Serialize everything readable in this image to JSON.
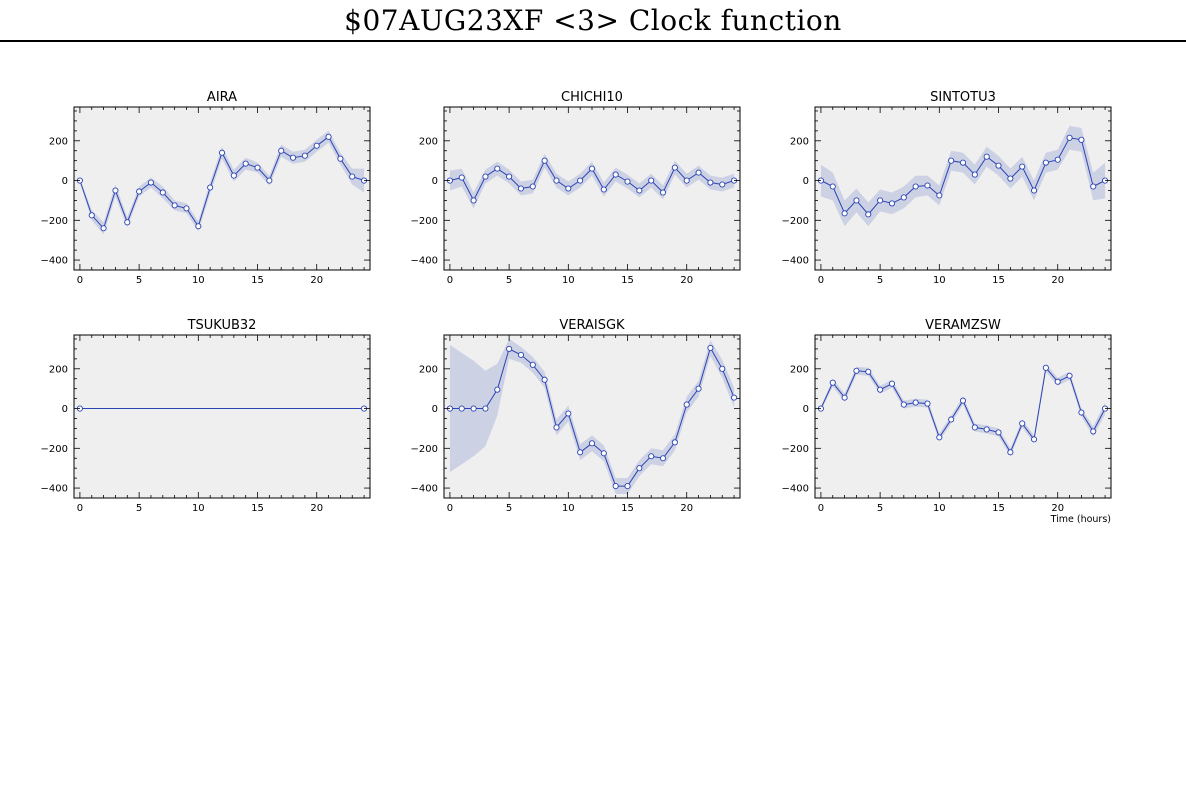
{
  "page": {
    "title": "$07AUG23XF <3>  Clock function"
  },
  "style": {
    "line_color": "#2b44b4",
    "band_color": "#cdd1e4",
    "panel_bg": "#efefef",
    "axis_color": "#000000"
  },
  "chart_data": [
    {
      "type": "line",
      "title": "AIRA",
      "xlabel": "",
      "ylabel": "",
      "xlim": [
        -0.5,
        24.5
      ],
      "ylim": [
        -450,
        370
      ],
      "xticks": [
        0,
        5,
        10,
        15,
        20
      ],
      "yticks": [
        -400,
        -200,
        0,
        200
      ],
      "x": [
        0,
        1,
        2,
        3,
        4,
        5,
        6,
        7,
        8,
        9,
        10,
        11,
        12,
        13,
        14,
        15,
        16,
        17,
        18,
        19,
        20,
        21,
        22,
        23,
        24
      ],
      "y": [
        0,
        -175,
        -240,
        -50,
        -210,
        -55,
        -10,
        -60,
        -125,
        -140,
        -230,
        -35,
        140,
        25,
        85,
        65,
        0,
        150,
        115,
        125,
        175,
        220,
        110,
        20,
        0
      ],
      "err": [
        10,
        25,
        30,
        30,
        25,
        25,
        25,
        30,
        25,
        25,
        25,
        30,
        30,
        30,
        30,
        25,
        25,
        30,
        30,
        30,
        30,
        30,
        30,
        40,
        60
      ]
    },
    {
      "type": "line",
      "title": "CHICHI10",
      "xlabel": "",
      "ylabel": "",
      "xlim": [
        -0.5,
        24.5
      ],
      "ylim": [
        -450,
        370
      ],
      "xticks": [
        0,
        5,
        10,
        15,
        20
      ],
      "yticks": [
        -400,
        -200,
        0,
        200
      ],
      "x": [
        0,
        1,
        2,
        3,
        4,
        5,
        6,
        7,
        8,
        9,
        10,
        11,
        12,
        13,
        14,
        15,
        16,
        17,
        18,
        19,
        20,
        21,
        22,
        23,
        24
      ],
      "y": [
        0,
        15,
        -100,
        20,
        60,
        20,
        -40,
        -30,
        100,
        0,
        -40,
        0,
        60,
        -45,
        30,
        -5,
        -50,
        0,
        -60,
        65,
        0,
        40,
        -10,
        -20,
        0
      ],
      "err": [
        50,
        45,
        40,
        35,
        35,
        35,
        35,
        35,
        35,
        35,
        35,
        35,
        35,
        35,
        35,
        35,
        35,
        35,
        35,
        35,
        35,
        35,
        35,
        35,
        35
      ]
    },
    {
      "type": "line",
      "title": "SINTOTU3",
      "xlabel": "",
      "ylabel": "",
      "xlim": [
        -0.5,
        24.5
      ],
      "ylim": [
        -450,
        370
      ],
      "xticks": [
        0,
        5,
        10,
        15,
        20
      ],
      "yticks": [
        -400,
        -200,
        0,
        200
      ],
      "x": [
        0,
        1,
        2,
        3,
        4,
        5,
        6,
        7,
        8,
        9,
        10,
        11,
        12,
        13,
        14,
        15,
        16,
        17,
        18,
        19,
        20,
        21,
        22,
        23,
        24
      ],
      "y": [
        0,
        -30,
        -165,
        -100,
        -170,
        -100,
        -115,
        -85,
        -30,
        -25,
        -75,
        100,
        90,
        30,
        120,
        75,
        10,
        70,
        -50,
        90,
        105,
        215,
        205,
        -30,
        0
      ],
      "err": [
        80,
        70,
        65,
        60,
        60,
        55,
        55,
        55,
        55,
        50,
        50,
        50,
        50,
        50,
        50,
        50,
        50,
        50,
        50,
        50,
        50,
        60,
        60,
        70,
        90
      ]
    },
    {
      "type": "line",
      "title": "TSUKUB32",
      "xlabel": "",
      "ylabel": "",
      "xlim": [
        -0.5,
        24.5
      ],
      "ylim": [
        -450,
        370
      ],
      "xticks": [
        0,
        5,
        10,
        15,
        20
      ],
      "yticks": [
        -400,
        -200,
        0,
        200
      ],
      "x": [
        0,
        24
      ],
      "y": [
        0,
        0
      ],
      "err": [
        0,
        0
      ]
    },
    {
      "type": "line",
      "title": "VERAISGK",
      "xlabel": "",
      "ylabel": "",
      "xlim": [
        -0.5,
        24.5
      ],
      "ylim": [
        -450,
        370
      ],
      "xticks": [
        0,
        5,
        10,
        15,
        20
      ],
      "yticks": [
        -400,
        -200,
        0,
        200
      ],
      "x": [
        0,
        1,
        2,
        3,
        4,
        5,
        6,
        7,
        8,
        9,
        10,
        11,
        12,
        13,
        14,
        15,
        16,
        17,
        18,
        19,
        20,
        21,
        22,
        23,
        24
      ],
      "y": [
        0,
        0,
        0,
        0,
        95,
        300,
        270,
        220,
        145,
        -95,
        -25,
        -220,
        -175,
        -225,
        -390,
        -390,
        -300,
        -240,
        -250,
        -170,
        20,
        100,
        305,
        200,
        55
      ],
      "err": [
        320,
        280,
        240,
        190,
        130,
        50,
        40,
        40,
        40,
        40,
        40,
        40,
        40,
        40,
        40,
        40,
        40,
        40,
        40,
        40,
        40,
        40,
        40,
        45,
        50
      ]
    },
    {
      "type": "line",
      "title": "VERAMZSW",
      "xlabel": "Time (hours)",
      "ylabel": "",
      "xlim": [
        -0.5,
        24.5
      ],
      "ylim": [
        -450,
        370
      ],
      "xticks": [
        0,
        5,
        10,
        15,
        20
      ],
      "yticks": [
        -400,
        -200,
        0,
        200
      ],
      "x": [
        0,
        1,
        2,
        3,
        4,
        5,
        6,
        7,
        8,
        9,
        10,
        11,
        12,
        13,
        14,
        15,
        16,
        17,
        18,
        19,
        20,
        21,
        22,
        23,
        24
      ],
      "y": [
        0,
        130,
        55,
        190,
        185,
        95,
        125,
        20,
        30,
        25,
        -145,
        -55,
        40,
        -95,
        -105,
        -120,
        -220,
        -75,
        -155,
        205,
        135,
        165,
        -20,
        -115,
        0
      ],
      "err": [
        10,
        20,
        20,
        20,
        20,
        20,
        20,
        20,
        20,
        20,
        20,
        20,
        20,
        20,
        20,
        20,
        20,
        20,
        20,
        20,
        20,
        20,
        20,
        25,
        30
      ]
    }
  ]
}
